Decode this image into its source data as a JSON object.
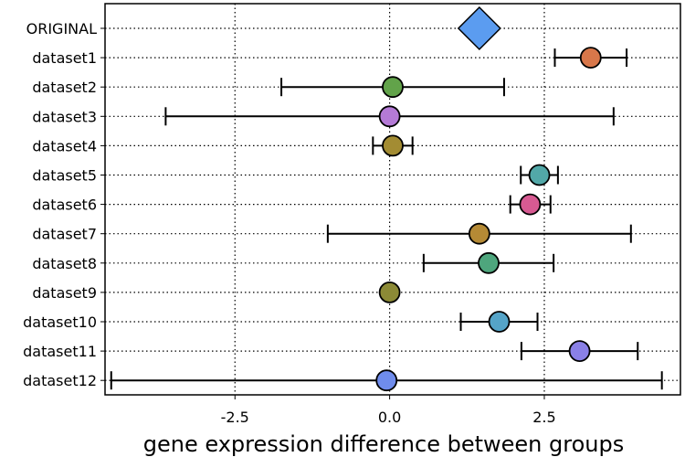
{
  "chart_data": {
    "type": "scatter",
    "title": "",
    "xlabel": "gene expression difference between groups",
    "ylabel": "",
    "xlim": [
      -4.6,
      4.7
    ],
    "xticks": [
      {
        "value": -2.5,
        "label": "-2.5"
      },
      {
        "value": 0.0,
        "label": "0.0"
      },
      {
        "value": 2.5,
        "label": "2.5"
      }
    ],
    "grid": "dotted",
    "legend": "none",
    "categories": [
      "ORIGINAL",
      "dataset1",
      "dataset2",
      "dataset3",
      "dataset4",
      "dataset5",
      "dataset6",
      "dataset7",
      "dataset8",
      "dataset9",
      "dataset10",
      "dataset11",
      "dataset12"
    ],
    "points": [
      {
        "label": "ORIGINAL",
        "value": 1.45,
        "low": null,
        "high": null,
        "marker": "diamond",
        "color": "#5b9cf0"
      },
      {
        "label": "dataset1",
        "value": 3.25,
        "low": 2.67,
        "high": 3.83,
        "marker": "circle",
        "color": "#d8774a"
      },
      {
        "label": "dataset2",
        "value": 0.05,
        "low": -1.75,
        "high": 1.85,
        "marker": "circle",
        "color": "#62a34a"
      },
      {
        "label": "dataset3",
        "value": 0.0,
        "low": -3.62,
        "high": 3.62,
        "marker": "circle",
        "color": "#b47ad6"
      },
      {
        "label": "dataset4",
        "value": 0.05,
        "low": -0.27,
        "high": 0.37,
        "marker": "circle",
        "color": "#a38c33"
      },
      {
        "label": "dataset5",
        "value": 2.42,
        "low": 2.12,
        "high": 2.72,
        "marker": "circle",
        "color": "#52a8a8"
      },
      {
        "label": "dataset6",
        "value": 2.27,
        "low": 1.95,
        "high": 2.6,
        "marker": "circle",
        "color": "#d75a92"
      },
      {
        "label": "dataset7",
        "value": 1.45,
        "low": -1.0,
        "high": 3.9,
        "marker": "circle",
        "color": "#b58a35"
      },
      {
        "label": "dataset8",
        "value": 1.6,
        "low": 0.55,
        "high": 2.65,
        "marker": "circle",
        "color": "#4ea67d"
      },
      {
        "label": "dataset9",
        "value": 0.0,
        "low": -0.05,
        "high": 0.05,
        "marker": "circle",
        "color": "#8c8a36"
      },
      {
        "label": "dataset10",
        "value": 1.77,
        "low": 1.15,
        "high": 2.39,
        "marker": "circle",
        "color": "#55a4c8"
      },
      {
        "label": "dataset11",
        "value": 3.07,
        "low": 2.13,
        "high": 4.01,
        "marker": "circle",
        "color": "#8a80e6"
      },
      {
        "label": "dataset12",
        "value": -0.05,
        "low": -4.5,
        "high": 4.4,
        "marker": "circle",
        "color": "#6f8cec"
      }
    ]
  }
}
